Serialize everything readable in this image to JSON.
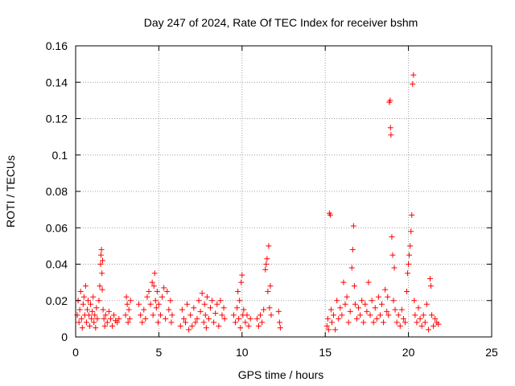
{
  "chart_data": {
    "type": "scatter",
    "title": "Day 247 of 2024, Rate Of TEC Index for receiver bshm",
    "xlabel": "GPS time / hours",
    "ylabel": "ROTI / TECUs",
    "xlim": [
      0,
      25
    ],
    "ylim": [
      0,
      0.16
    ],
    "xticks": [
      "0",
      "5",
      "10",
      "15",
      "20",
      "25"
    ],
    "yticks": [
      "0",
      "0.02",
      "0.04",
      "0.06",
      "0.08",
      "0.1",
      "0.12",
      "0.14",
      "0.16"
    ],
    "grid": true,
    "marker": "+",
    "color": "#ff0000",
    "series": [
      {
        "points": [
          [
            0.1,
            0.012
          ],
          [
            0.15,
            0.02
          ],
          [
            0.2,
            0.008
          ],
          [
            0.25,
            0.015
          ],
          [
            0.3,
            0.025
          ],
          [
            0.35,
            0.01
          ],
          [
            0.4,
            0.005
          ],
          [
            0.45,
            0.018
          ],
          [
            0.5,
            0.022
          ],
          [
            0.55,
            0.012
          ],
          [
            0.6,
            0.028
          ],
          [
            0.65,
            0.008
          ],
          [
            0.7,
            0.015
          ],
          [
            0.75,
            0.02
          ],
          [
            0.8,
            0.012
          ],
          [
            0.85,
            0.006
          ],
          [
            0.9,
            0.018
          ],
          [
            0.95,
            0.01
          ],
          [
            1.0,
            0.014
          ],
          [
            1.05,
            0.022
          ],
          [
            1.1,
            0.008
          ],
          [
            1.15,
            0.012
          ],
          [
            1.2,
            0.005
          ],
          [
            1.25,
            0.016
          ],
          [
            1.3,
            0.01
          ],
          [
            1.4,
            0.02
          ],
          [
            1.45,
            0.028
          ],
          [
            1.5,
            0.04
          ],
          [
            1.52,
            0.045
          ],
          [
            1.55,
            0.048
          ],
          [
            1.58,
            0.035
          ],
          [
            1.6,
            0.026
          ],
          [
            1.62,
            0.042
          ],
          [
            1.65,
            0.015
          ],
          [
            1.7,
            0.01
          ],
          [
            1.75,
            0.006
          ],
          [
            1.8,
            0.012
          ],
          [
            1.9,
            0.008
          ],
          [
            2.0,
            0.014
          ],
          [
            2.1,
            0.01
          ],
          [
            2.2,
            0.006
          ],
          [
            2.3,
            0.012
          ],
          [
            2.4,
            0.009
          ],
          [
            2.5,
            0.008
          ],
          [
            2.6,
            0.01
          ],
          [
            3.0,
            0.012
          ],
          [
            3.05,
            0.022
          ],
          [
            3.1,
            0.018
          ],
          [
            3.15,
            0.008
          ],
          [
            3.2,
            0.015
          ],
          [
            3.25,
            0.01
          ],
          [
            3.3,
            0.02
          ],
          [
            3.8,
            0.018
          ],
          [
            3.9,
            0.012
          ],
          [
            4.0,
            0.008
          ],
          [
            4.1,
            0.015
          ],
          [
            4.2,
            0.01
          ],
          [
            4.3,
            0.022
          ],
          [
            4.4,
            0.025
          ],
          [
            4.5,
            0.018
          ],
          [
            4.6,
            0.03
          ],
          [
            4.65,
            0.012
          ],
          [
            4.7,
            0.028
          ],
          [
            4.75,
            0.035
          ],
          [
            4.8,
            0.02
          ],
          [
            4.85,
            0.016
          ],
          [
            4.9,
            0.025
          ],
          [
            4.95,
            0.008
          ],
          [
            5.0,
            0.018
          ],
          [
            5.1,
            0.012
          ],
          [
            5.2,
            0.022
          ],
          [
            5.3,
            0.027
          ],
          [
            5.4,
            0.01
          ],
          [
            5.5,
            0.025
          ],
          [
            5.6,
            0.015
          ],
          [
            5.7,
            0.02
          ],
          [
            5.75,
            0.008
          ],
          [
            5.8,
            0.012
          ],
          [
            6.3,
            0.006
          ],
          [
            6.4,
            0.015
          ],
          [
            6.5,
            0.01
          ],
          [
            6.6,
            0.008
          ],
          [
            6.7,
            0.018
          ],
          [
            6.8,
            0.004
          ],
          [
            6.9,
            0.012
          ],
          [
            7.0,
            0.006
          ],
          [
            7.1,
            0.016
          ],
          [
            7.2,
            0.008
          ],
          [
            7.3,
            0.01
          ],
          [
            7.4,
            0.02
          ],
          [
            7.5,
            0.014
          ],
          [
            7.6,
            0.024
          ],
          [
            7.7,
            0.008
          ],
          [
            7.75,
            0.018
          ],
          [
            7.8,
            0.012
          ],
          [
            7.85,
            0.005
          ],
          [
            7.9,
            0.022
          ],
          [
            8.0,
            0.01
          ],
          [
            8.1,
            0.016
          ],
          [
            8.2,
            0.02
          ],
          [
            8.3,
            0.008
          ],
          [
            8.4,
            0.013
          ],
          [
            8.5,
            0.018
          ],
          [
            8.6,
            0.006
          ],
          [
            8.7,
            0.02
          ],
          [
            8.8,
            0.012
          ],
          [
            8.9,
            0.016
          ],
          [
            8.95,
            0.01
          ],
          [
            9.5,
            0.012
          ],
          [
            9.6,
            0.008
          ],
          [
            9.7,
            0.016
          ],
          [
            9.75,
            0.025
          ],
          [
            9.8,
            0.01
          ],
          [
            9.85,
            0.02
          ],
          [
            9.9,
            0.005
          ],
          [
            9.95,
            0.03
          ],
          [
            10.0,
            0.034
          ],
          [
            10.05,
            0.012
          ],
          [
            10.1,
            0.015
          ],
          [
            10.2,
            0.008
          ],
          [
            10.3,
            0.012
          ],
          [
            10.4,
            0.006
          ],
          [
            10.5,
            0.01
          ],
          [
            10.9,
            0.01
          ],
          [
            11.0,
            0.006
          ],
          [
            11.1,
            0.012
          ],
          [
            11.2,
            0.008
          ],
          [
            11.3,
            0.015
          ],
          [
            11.4,
            0.037
          ],
          [
            11.45,
            0.04
          ],
          [
            11.5,
            0.043
          ],
          [
            11.55,
            0.025
          ],
          [
            11.6,
            0.05
          ],
          [
            11.65,
            0.016
          ],
          [
            11.7,
            0.028
          ],
          [
            11.75,
            0.012
          ],
          [
            12.2,
            0.014
          ],
          [
            12.25,
            0.008
          ],
          [
            12.3,
            0.005
          ],
          [
            15.1,
            0.006
          ],
          [
            15.15,
            0.01
          ],
          [
            15.2,
            0.004
          ],
          [
            15.25,
            0.068
          ],
          [
            15.3,
            0.067
          ],
          [
            15.35,
            0.015
          ],
          [
            15.4,
            0.008
          ],
          [
            15.5,
            0.012
          ],
          [
            15.6,
            0.004
          ],
          [
            15.7,
            0.02
          ],
          [
            15.8,
            0.01
          ],
          [
            15.9,
            0.016
          ],
          [
            16.0,
            0.012
          ],
          [
            16.1,
            0.03
          ],
          [
            16.2,
            0.018
          ],
          [
            16.3,
            0.022
          ],
          [
            16.4,
            0.008
          ],
          [
            16.5,
            0.014
          ],
          [
            16.6,
            0.038
          ],
          [
            16.65,
            0.048
          ],
          [
            16.7,
            0.061
          ],
          [
            16.75,
            0.028
          ],
          [
            16.8,
            0.018
          ],
          [
            16.9,
            0.01
          ],
          [
            17.0,
            0.016
          ],
          [
            17.1,
            0.012
          ],
          [
            17.2,
            0.02
          ],
          [
            17.3,
            0.008
          ],
          [
            17.4,
            0.018
          ],
          [
            17.5,
            0.014
          ],
          [
            17.6,
            0.03
          ],
          [
            17.7,
            0.012
          ],
          [
            17.8,
            0.02
          ],
          [
            17.9,
            0.008
          ],
          [
            18.0,
            0.016
          ],
          [
            18.1,
            0.01
          ],
          [
            18.2,
            0.022
          ],
          [
            18.3,
            0.012
          ],
          [
            18.4,
            0.018
          ],
          [
            18.5,
            0.008
          ],
          [
            18.6,
            0.026
          ],
          [
            18.7,
            0.014
          ],
          [
            18.75,
            0.022
          ],
          [
            18.8,
            0.012
          ],
          [
            18.85,
            0.129
          ],
          [
            18.9,
            0.13
          ],
          [
            18.92,
            0.115
          ],
          [
            18.95,
            0.111
          ],
          [
            19.0,
            0.055
          ],
          [
            19.05,
            0.045
          ],
          [
            19.1,
            0.02
          ],
          [
            19.15,
            0.038
          ],
          [
            19.2,
            0.015
          ],
          [
            19.3,
            0.008
          ],
          [
            19.4,
            0.012
          ],
          [
            19.5,
            0.006
          ],
          [
            19.6,
            0.015
          ],
          [
            19.7,
            0.01
          ],
          [
            19.8,
            0.008
          ],
          [
            19.9,
            0.025
          ],
          [
            19.95,
            0.035
          ],
          [
            20.0,
            0.04
          ],
          [
            20.05,
            0.045
          ],
          [
            20.1,
            0.05
          ],
          [
            20.15,
            0.058
          ],
          [
            20.2,
            0.067
          ],
          [
            20.25,
            0.139
          ],
          [
            20.3,
            0.144
          ],
          [
            20.35,
            0.02
          ],
          [
            20.4,
            0.012
          ],
          [
            20.5,
            0.008
          ],
          [
            20.6,
            0.016
          ],
          [
            20.7,
            0.01
          ],
          [
            20.8,
            0.006
          ],
          [
            20.9,
            0.012
          ],
          [
            21.0,
            0.008
          ],
          [
            21.1,
            0.018
          ],
          [
            21.2,
            0.004
          ],
          [
            21.3,
            0.032
          ],
          [
            21.35,
            0.028
          ],
          [
            21.4,
            0.012
          ],
          [
            21.5,
            0.006
          ],
          [
            21.6,
            0.01
          ],
          [
            21.7,
            0.008
          ],
          [
            21.8,
            0.007
          ]
        ]
      }
    ]
  }
}
